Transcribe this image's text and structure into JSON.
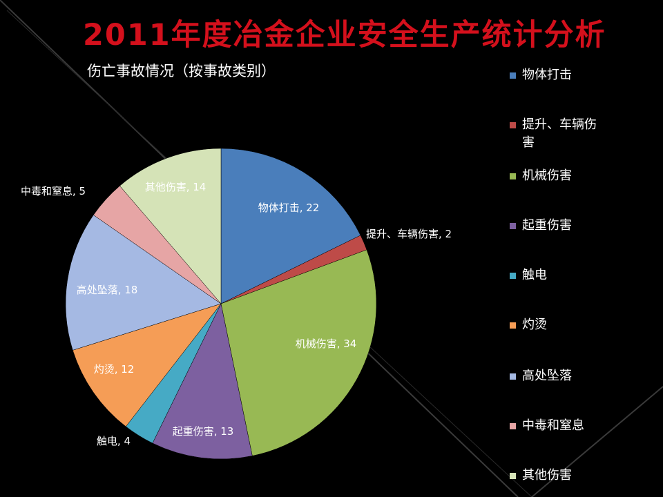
{
  "slide": {
    "title": "2011年度冶金企业安全生产统计分析",
    "background_color": "#000000",
    "title_color": "#d4101c"
  },
  "chart_data": {
    "type": "pie",
    "title": "伤亡事故情况（按事故类别）",
    "categories": [
      "物体打击",
      "提升、车辆伤害",
      "机械伤害",
      "起重伤害",
      "触电",
      "灼烫",
      "高处坠落",
      "中毒和窒息",
      "其他伤害"
    ],
    "values": [
      22,
      2,
      34,
      13,
      4,
      12,
      18,
      5,
      14
    ],
    "colors": [
      "#4a7ebb",
      "#be4b48",
      "#98b954",
      "#7d60a0",
      "#46aac5",
      "#f59d56",
      "#a5b9e3",
      "#e6a5a5",
      "#d5e3b7"
    ],
    "data_labels": [
      "物体打击, 22",
      "提升、车辆伤害, 2",
      "机械伤害, 34",
      "起重伤害, 13",
      "触电, 4",
      "灼烫, 12",
      "高处坠落, 18",
      "中毒和窒息, 5",
      "其他伤害, 14"
    ],
    "legend": {
      "position": "right",
      "items": [
        "物体打击",
        "提升、车辆伤害",
        "机械伤害",
        "起重伤害",
        "触电",
        "灼烫",
        "高处坠落",
        "中毒和窒息",
        "其他伤害"
      ]
    }
  }
}
